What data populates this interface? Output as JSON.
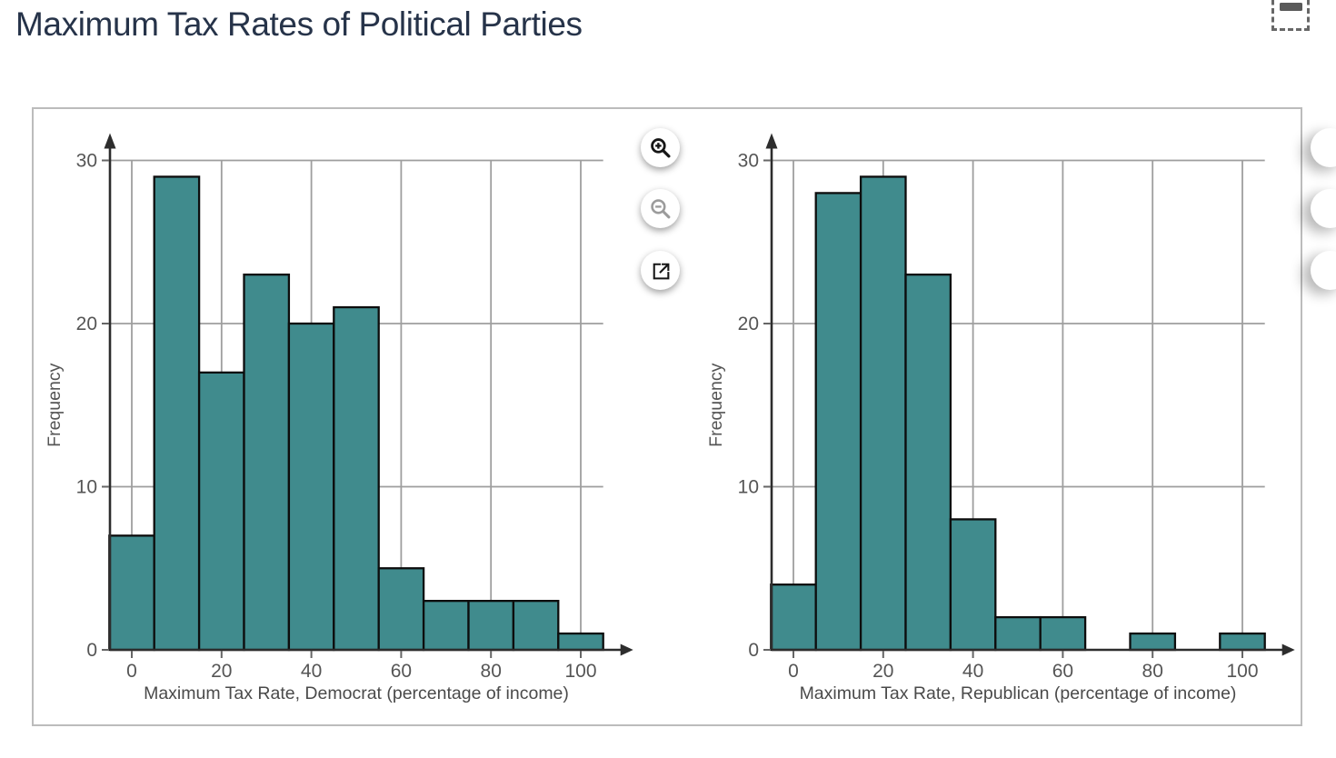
{
  "page": {
    "title": "Maximum Tax Rates of Political Parties"
  },
  "chart_data": [
    {
      "type": "histogram",
      "series_name": "Democrat",
      "xlabel": "Maximum Tax Rate, Democrat (percentage of income)",
      "ylabel": "Frequency",
      "bin_width": 10,
      "bin_centers": [
        0,
        10,
        20,
        30,
        40,
        50,
        60,
        70,
        80,
        90,
        100
      ],
      "frequencies": [
        7,
        29,
        17,
        23,
        20,
        21,
        5,
        3,
        3,
        3,
        1
      ],
      "x_ticks": [
        0,
        20,
        40,
        60,
        80,
        100
      ],
      "y_ticks": [
        0,
        10,
        20,
        30
      ],
      "xlim": [
        -5,
        105
      ],
      "ylim": [
        0,
        31
      ],
      "grid": true,
      "bar_color": "#408B8D",
      "bar_border_color": "#0D0D0D"
    },
    {
      "type": "histogram",
      "series_name": "Republican",
      "xlabel": "Maximum Tax Rate, Republican (percentage of income)",
      "ylabel": "Frequency",
      "bin_width": 10,
      "bin_centers": [
        0,
        10,
        20,
        30,
        40,
        50,
        60,
        70,
        80,
        90,
        100
      ],
      "frequencies": [
        4,
        28,
        29,
        23,
        8,
        2,
        2,
        0,
        1,
        0,
        1
      ],
      "x_ticks": [
        0,
        20,
        40,
        60,
        80,
        100
      ],
      "y_ticks": [
        0,
        10,
        20,
        30
      ],
      "xlim": [
        -5,
        105
      ],
      "ylim": [
        0,
        31
      ],
      "grid": true,
      "bar_color": "#408B8D",
      "bar_border_color": "#0D0D0D"
    }
  ],
  "controls": {
    "buttons": [
      {
        "icon": "zoom-in-icon",
        "color": "#161616"
      },
      {
        "icon": "zoom-out-icon",
        "color": "#9b9b9b"
      },
      {
        "icon": "open-external-icon",
        "color": "#161616"
      }
    ],
    "right_buttons_clipped": true
  },
  "browser": {
    "selection_icon": "region-selection-icon"
  },
  "colors": {
    "bar_fill": "#408B8D",
    "grid_line": "#9e9e9e",
    "axis_line": "#2d2d2d",
    "tick_label": "#555555",
    "axis_title": "#4a4a4a",
    "title_text": "#263349",
    "panel_border": "#bcbcbc"
  }
}
